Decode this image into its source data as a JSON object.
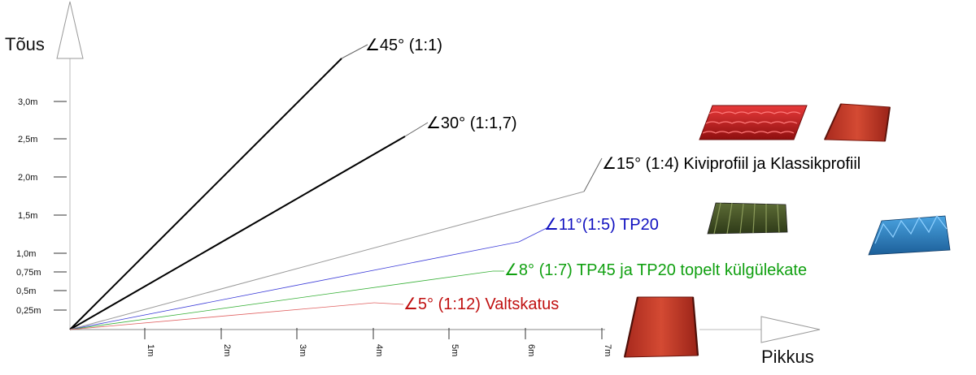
{
  "axes": {
    "y_title": "Tõus",
    "x_title": "Pikkus",
    "y_ticks": [
      "0,25m",
      "0,5m",
      "0,75m",
      "1,0m",
      "1,5m",
      "2,0m",
      "2,5m",
      "3,0m"
    ],
    "x_ticks": [
      "1m",
      "2m",
      "3m",
      "4m",
      "5m",
      "6m",
      "7m"
    ]
  },
  "slopes": [
    {
      "label": "∠45° (1:1)",
      "color": "#000000"
    },
    {
      "label": "∠30° (1:1,7)",
      "color": "#000000"
    },
    {
      "label": "∠15° (1:4) Kiviprofiil ja Klassikprofiil",
      "color": "#000000"
    },
    {
      "label": "∠11°(1:5) TP20",
      "color": "#1010c0"
    },
    {
      "label": "∠8° (1:7) TP45 ja TP20 topelt külgülekate",
      "color": "#10a010"
    },
    {
      "label": "∠5° (1:12) Valtskatus",
      "color": "#c01010"
    }
  ],
  "profiles": [
    {
      "name": "tile-profile-image",
      "color": "#c81e1e"
    },
    {
      "name": "standing-seam-image",
      "color": "#c0392b"
    },
    {
      "name": "trapezoid-tp20-image",
      "color": "#4a5a2a"
    },
    {
      "name": "trapezoid-tp45-image",
      "color": "#2f7fc0"
    },
    {
      "name": "seam-panel-image",
      "color": "#b52a1f"
    }
  ]
}
